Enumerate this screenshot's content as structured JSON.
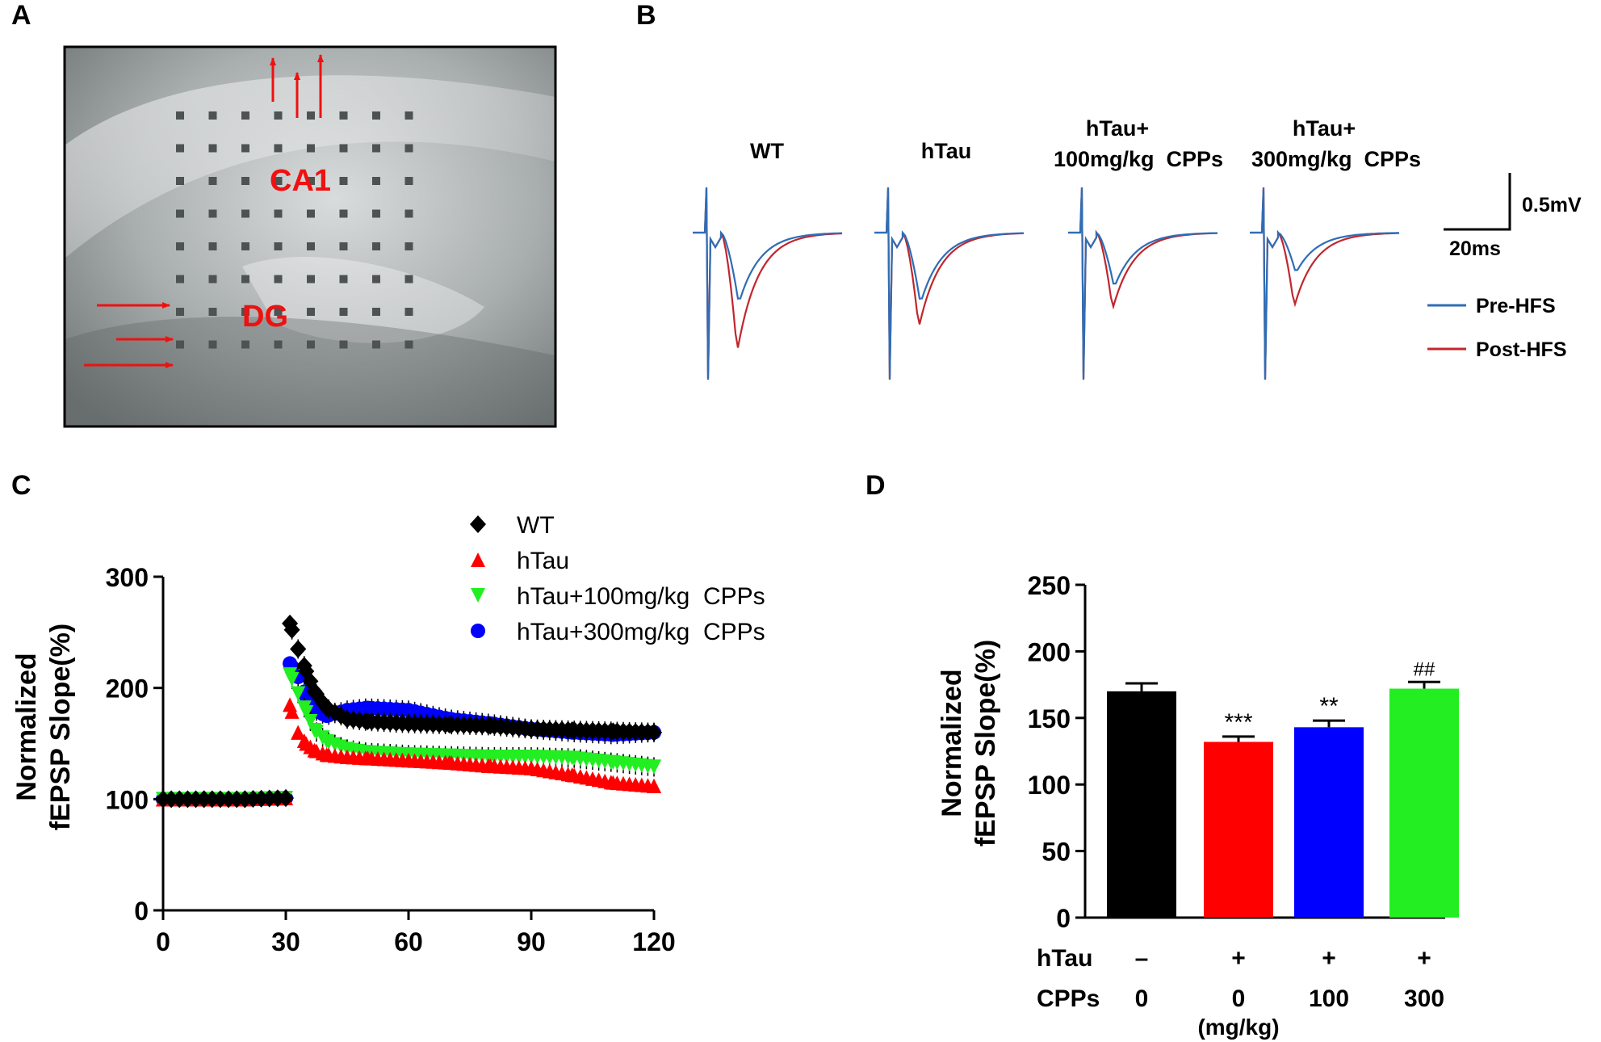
{
  "panel_labels": {
    "a": "A",
    "b": "B",
    "c": "C",
    "d": "D"
  },
  "panel_a": {
    "region_ca1": "CA1",
    "region_dg": "DG"
  },
  "panel_b": {
    "groups": [
      {
        "line1": "WT",
        "line2": ""
      },
      {
        "line1": "hTau",
        "line2": ""
      },
      {
        "line1": "hTau+",
        "line2": "100mg/kg  CPPs"
      },
      {
        "line1": "hTau+",
        "line2": "300mg/kg  CPPs"
      }
    ],
    "scale_v": "0.5mV",
    "scale_t": "20ms",
    "legend": [
      {
        "label": "Pre-HFS",
        "color": "#2f6db5"
      },
      {
        "label": "Post-HFS",
        "color": "#c0272d"
      }
    ]
  },
  "chart_data": [
    {
      "type": "scatter",
      "panel": "C",
      "title": "",
      "xlabel": "",
      "ylabel_line1": "Normalized",
      "ylabel_line2": "fEPSP Slope(%)",
      "xlim": [
        0,
        120
      ],
      "ylim": [
        0,
        300
      ],
      "xticks": [
        "0",
        "30",
        "60",
        "90",
        "120"
      ],
      "yticks": [
        "0",
        "100",
        "200",
        "300"
      ],
      "legend_position": "top",
      "series": [
        {
          "name": "WT",
          "marker": "diamond",
          "color": "#000000",
          "x": [
            0,
            10,
            20,
            30,
            31,
            33,
            35,
            37,
            40,
            45,
            50,
            60,
            70,
            80,
            90,
            100,
            110,
            120
          ],
          "y": [
            100,
            100,
            100,
            101,
            258,
            235,
            215,
            197,
            182,
            172,
            170,
            168,
            167,
            166,
            163,
            162,
            161,
            160
          ]
        },
        {
          "name": "hTau",
          "marker": "triangle-up",
          "color": "#ff0000",
          "x": [
            0,
            10,
            20,
            30,
            31,
            33,
            35,
            37,
            40,
            45,
            50,
            60,
            70,
            80,
            90,
            100,
            110,
            120
          ],
          "y": [
            100,
            100,
            100,
            101,
            185,
            160,
            150,
            144,
            140,
            138,
            137,
            135,
            133,
            130,
            128,
            122,
            115,
            112
          ]
        },
        {
          "name": "hTau+100mg/kg  CPPs",
          "marker": "triangle-down",
          "color": "#22ee22",
          "x": [
            0,
            10,
            20,
            30,
            31,
            33,
            35,
            37,
            40,
            45,
            50,
            60,
            70,
            80,
            90,
            100,
            110,
            120
          ],
          "y": [
            100,
            100,
            100,
            101,
            212,
            195,
            178,
            162,
            152,
            145,
            142,
            140,
            139,
            138,
            138,
            137,
            133,
            129
          ]
        },
        {
          "name": "hTau+300mg/kg  CPPs",
          "marker": "circle",
          "color": "#0000ff",
          "x": [
            0,
            10,
            20,
            30,
            31,
            33,
            35,
            37,
            40,
            45,
            50,
            60,
            70,
            80,
            90,
            100,
            110,
            120
          ],
          "y": [
            100,
            100,
            100,
            101,
            222,
            210,
            192,
            180,
            175,
            180,
            182,
            180,
            172,
            168,
            163,
            160,
            158,
            160
          ]
        }
      ]
    },
    {
      "type": "bar",
      "panel": "D",
      "title": "",
      "ylabel_line1": "Normalized",
      "ylabel_line2": "fEPSP Slope(%)",
      "ylim": [
        0,
        250
      ],
      "yticks": [
        "0",
        "50",
        "100",
        "150",
        "200",
        "250"
      ],
      "values": [
        170,
        132,
        143,
        172
      ],
      "errors": [
        6,
        4,
        5,
        5
      ],
      "colors": [
        "#000000",
        "#ff0000",
        "#0000ff",
        "#22ee22"
      ],
      "significance": [
        "",
        "***",
        "**",
        "##"
      ],
      "row_labels": {
        "htau": "hTau",
        "cpps": "CPPs"
      },
      "htau_values": [
        "–",
        "+",
        "+",
        "+"
      ],
      "cpps_values": [
        "0",
        "0",
        "100",
        "300"
      ],
      "unit_note": "(mg/kg)"
    }
  ]
}
